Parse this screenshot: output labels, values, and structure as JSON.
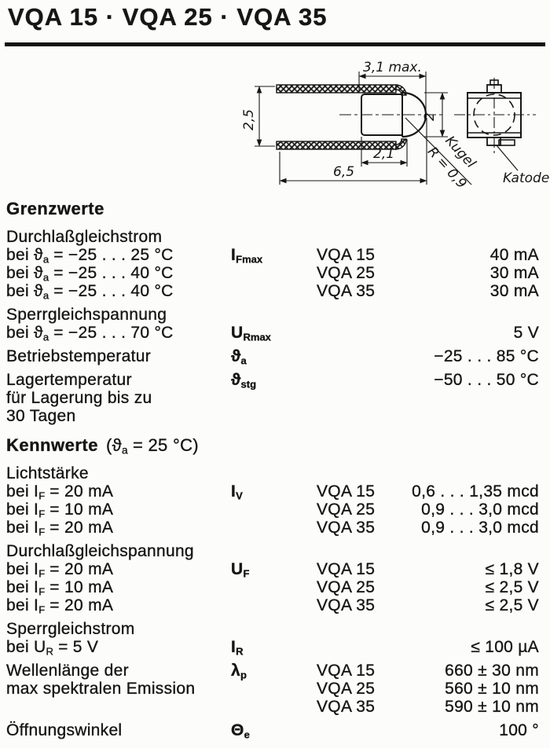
{
  "title": "VQA 15 · VQA 25 · VQA 35",
  "colors": {
    "ink": "#161616",
    "paper": "#fcfcfa"
  },
  "drawing": {
    "dim_width": "3,1 max.",
    "dim_lead_span": "2,5",
    "dim_dome_height": "2",
    "dim_dome_length": "2,1",
    "dim_total_length": "6,5",
    "kugel_line1": "Kugel",
    "kugel_line2": "R = 0,9",
    "katode": "Katode"
  },
  "table": {
    "lines": [
      {
        "kind": "h",
        "label": "Grenzwerte",
        "suffix": ""
      },
      {
        "kind": "r",
        "label": "Durchlaßgleichstrom"
      },
      {
        "kind": "r",
        "label": "bei ϑ_{a} = −25 . . . 25 °C",
        "sym": "I_{Fmax}",
        "type": "VQA 15",
        "value": "40 mA"
      },
      {
        "kind": "r",
        "label": "bei ϑ_{a} = −25 . . . 40 °C",
        "type": "VQA 25",
        "value": "30 mA"
      },
      {
        "kind": "r",
        "label": "bei ϑ_{a} = −25 . . . 40 °C",
        "type": "VQA 35",
        "value": "30 mA"
      },
      {
        "kind": "r",
        "gap": true,
        "label": "Sperrgleichspannung"
      },
      {
        "kind": "r",
        "label": "bei ϑ_{a} = −25 . . . 70 °C",
        "sym": "U_{Rmax}",
        "value": "5 V"
      },
      {
        "kind": "r",
        "gap": true,
        "label": "Betriebstemperatur",
        "sym": "ϑ_{a}",
        "value": "−25 . . . 85 °C"
      },
      {
        "kind": "r",
        "gap": true,
        "label": "Lagertemperatur",
        "sym": "ϑ_{stg}",
        "value": "−50 . . . 50 °C"
      },
      {
        "kind": "r",
        "label": "für Lagerung bis zu"
      },
      {
        "kind": "r",
        "label": "30 Tagen"
      },
      {
        "kind": "h",
        "gap": true,
        "label": "Kennwerte",
        "suffix": "(ϑ_{a} = 25 °C)"
      },
      {
        "kind": "r",
        "label": "Lichtstärke"
      },
      {
        "kind": "r",
        "label": "bei I_{F} = 20 mA",
        "sym": "I_{V}",
        "type": "VQA 15",
        "value": "0,6 . . . 1,35 mcd"
      },
      {
        "kind": "r",
        "label": "bei I_{F} = 10 mA",
        "type": "VQA 25",
        "value": "0,9 . . . 3,0 mcd"
      },
      {
        "kind": "r",
        "label": "bei I_{F} = 20 mA",
        "type": "VQA 35",
        "value": "0,9 . . . 3,0 mcd"
      },
      {
        "kind": "r",
        "gap": true,
        "label": "Durchlaßgleichspannung"
      },
      {
        "kind": "r",
        "label": "bei I_{F} = 20 mA",
        "sym": "U_{F}",
        "type": "VQA 15",
        "value": "≤ 1,8 V"
      },
      {
        "kind": "r",
        "label": "bei I_{F} = 10 mA",
        "type": "VQA 25",
        "value": "≤ 2,5 V"
      },
      {
        "kind": "r",
        "label": "bei I_{F} = 20 mA",
        "type": "VQA 35",
        "value": "≤ 2,5 V"
      },
      {
        "kind": "r",
        "gap": true,
        "label": "Sperrgleichstrom"
      },
      {
        "kind": "r",
        "label": "bei U_{R} = 5 V",
        "sym": "I_{R}",
        "value": "≤ 100 µA"
      },
      {
        "kind": "r",
        "gap": true,
        "label": "Wellenlänge der",
        "sym": "λ_{p}",
        "type": "VQA 15",
        "value": "660 ± 30 nm"
      },
      {
        "kind": "r",
        "label": "max spektralen Emission",
        "type": "VQA 25",
        "value": "560 ± 10 nm"
      },
      {
        "kind": "r",
        "type": "VQA 35",
        "value": "590 ± 10 nm"
      },
      {
        "kind": "r",
        "gap": true,
        "label": "Öffnungswinkel",
        "sym": "Θ_{e}",
        "value": "100 °"
      }
    ]
  }
}
